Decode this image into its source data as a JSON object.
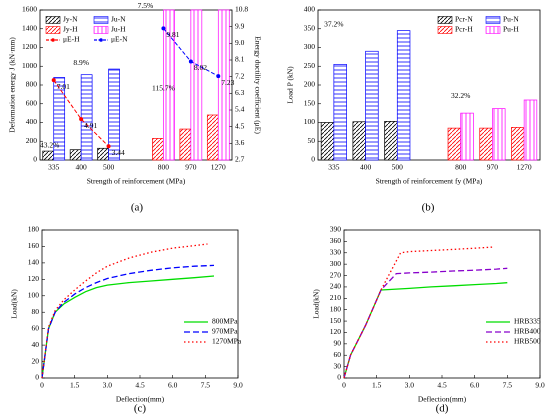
{
  "chart_data": [
    {
      "type": "bar",
      "caption": "(a)",
      "xlabel": "Strength of reinforcement (MPa)",
      "ylabel": "Deformation energy J (kN·mm)",
      "y2label": "Energy ductility coefficient (μE)",
      "categories": [
        "335",
        "400",
        "500",
        null,
        "800",
        "970",
        "1270"
      ],
      "ylim": [
        0,
        1600
      ],
      "yticks": [
        0,
        200,
        400,
        600,
        800,
        1000,
        1200,
        1400,
        1600
      ],
      "y2lim": [
        2.7,
        10.8
      ],
      "y2ticks": [
        2.7,
        3.6,
        4.5,
        5.4,
        6.3,
        7.2,
        8.1,
        {
          "value": 9,
          "label": "9.0"
        },
        9.9,
        10.8
      ],
      "legend": "upper left",
      "series": [
        {
          "name": "Jy-N",
          "color": "#000000",
          "hatch": "diagonal",
          "values": [
            95,
            110,
            125,
            null,
            null,
            null,
            null
          ]
        },
        {
          "name": "Ju-N",
          "color": "#0000ff",
          "hatch": "horizontal",
          "values": [
            880,
            910,
            970,
            null,
            null,
            null,
            null
          ]
        },
        {
          "name": "Jy-H",
          "color": "#ff0000",
          "hatch": "diagonal",
          "values": [
            null,
            null,
            null,
            null,
            230,
            330,
            480
          ]
        },
        {
          "name": "Ju-H",
          "color": "#ff00ff",
          "hatch": "vertical",
          "values": [
            null,
            null,
            null,
            null,
            1600,
            1600,
            1600
          ]
        },
        {
          "name": "μE-H",
          "color": "#ff0000",
          "axis": "y2",
          "kind": "line",
          "values": [
            7.01,
            4.91,
            3.44,
            null,
            null,
            null,
            null
          ],
          "value_labels": [
            "7.01",
            "4.91",
            "3.44",
            null,
            null,
            null,
            null
          ]
        },
        {
          "name": "μE-N",
          "color": "#0000ff",
          "axis": "y2",
          "kind": "line",
          "values": [
            null,
            null,
            null,
            null,
            9.81,
            8.02,
            7.23
          ],
          "value_labels": [
            null,
            null,
            null,
            null,
            "9.81",
            "8.02",
            "7.23"
          ]
        }
      ],
      "annotations": [
        "43.2%",
        "8.9%",
        "115.7%",
        "7.5%"
      ]
    },
    {
      "type": "bar",
      "caption": "(b)",
      "xlabel": "Strength of reinforcement fy (MPa)",
      "ylabel": "Load P (kN)",
      "categories": [
        "335",
        "400",
        "500",
        null,
        "800",
        "970",
        "1270"
      ],
      "ylim": [
        0,
        400
      ],
      "yticks": [
        0,
        50,
        100,
        150,
        200,
        250,
        300,
        350,
        400
      ],
      "legend": "upper right",
      "series": [
        {
          "name": "Pcr-N",
          "color": "#000000",
          "hatch": "diagonal",
          "values": [
            100,
            102,
            103,
            null,
            null,
            null,
            null
          ]
        },
        {
          "name": "Pu-N",
          "color": "#0000ff",
          "hatch": "horizontal",
          "values": [
            255,
            290,
            345,
            null,
            null,
            null,
            null
          ]
        },
        {
          "name": "Pcr-H",
          "color": "#ff0000",
          "hatch": "diagonal",
          "values": [
            null,
            null,
            null,
            null,
            85,
            85,
            87
          ]
        },
        {
          "name": "Pu-H",
          "color": "#ff00ff",
          "hatch": "vertical",
          "values": [
            null,
            null,
            null,
            null,
            125,
            137,
            160
          ]
        }
      ],
      "annotations": [
        "37.2%",
        "32.2%"
      ]
    },
    {
      "type": "line",
      "caption": "(c)",
      "xlabel": "Deflection(mm)",
      "ylabel": "Load(kN)",
      "xlim": [
        0,
        9
      ],
      "xticks": [
        0,
        1.5,
        {
          "value": 3,
          "label": "3.0"
        },
        4.5,
        {
          "value": 6,
          "label": "6.0"
        },
        7.5,
        {
          "value": 9,
          "label": "9.0"
        }
      ],
      "ylim": [
        0,
        180
      ],
      "yticks": [
        0,
        20,
        40,
        60,
        80,
        100,
        120,
        140,
        160,
        180
      ],
      "legend": "lower right",
      "series": [
        {
          "name": "800MPa",
          "color": "#00dd00",
          "style": "solid",
          "x": [
            0,
            0.3,
            0.6,
            1.0,
            1.5,
            2,
            2.5,
            3,
            4,
            5,
            6,
            7,
            7.9
          ],
          "values": [
            0,
            60,
            80,
            90,
            98,
            105,
            110,
            113,
            116,
            118,
            120,
            122,
            124
          ]
        },
        {
          "name": "970MPa",
          "color": "#0000ff",
          "style": "dashed",
          "x": [
            0,
            0.3,
            0.6,
            1.0,
            1.5,
            2,
            2.5,
            3,
            4,
            5,
            6,
            7,
            7.9
          ],
          "values": [
            0,
            60,
            80,
            92,
            102,
            110,
            116,
            121,
            127,
            131,
            134,
            136,
            137
          ]
        },
        {
          "name": "1270MPa",
          "color": "#ff0000",
          "style": "dotted",
          "x": [
            0,
            0.3,
            0.6,
            1.0,
            1.5,
            2,
            2.5,
            3,
            4,
            5,
            6,
            7,
            7.6
          ],
          "values": [
            0,
            62,
            82,
            95,
            107,
            118,
            128,
            136,
            146,
            153,
            158,
            161,
            163
          ]
        }
      ]
    },
    {
      "type": "line",
      "caption": "(d)",
      "xlabel": "Deflection(mm)",
      "ylabel": "Load(kN)",
      "xlim": [
        0,
        9
      ],
      "xticks": [
        0,
        1.5,
        {
          "value": 3,
          "label": "3.0"
        },
        4.5,
        {
          "value": 6,
          "label": "6.0"
        },
        7.5,
        {
          "value": 9,
          "label": "9.0"
        }
      ],
      "ylim": [
        0,
        390
      ],
      "yticks": [
        0,
        30,
        60,
        90,
        120,
        150,
        180,
        210,
        240,
        270,
        300,
        330,
        360,
        390
      ],
      "legend": "lower right",
      "series": [
        {
          "name": "HRB335",
          "color": "#00dd00",
          "style": "solid",
          "x": [
            0,
            0.3,
            1.0,
            1.7,
            2,
            3,
            4,
            5,
            6,
            7,
            7.5
          ],
          "values": [
            0,
            60,
            140,
            232,
            233,
            236,
            240,
            243,
            246,
            249,
            251
          ]
        },
        {
          "name": "HRB400",
          "color": "#8800cc",
          "style": "dashed",
          "x": [
            0,
            0.3,
            1.0,
            1.7,
            2.4,
            3,
            4,
            5,
            6,
            7,
            7.5
          ],
          "values": [
            0,
            60,
            140,
            232,
            275,
            277,
            279,
            282,
            284,
            287,
            289
          ]
        },
        {
          "name": "HRB500",
          "color": "#ff0000",
          "style": "dotted",
          "x": [
            0,
            0.3,
            1.0,
            1.7,
            2.6,
            3,
            4,
            5,
            6,
            6.8
          ],
          "values": [
            0,
            60,
            140,
            232,
            330,
            333,
            336,
            339,
            342,
            345
          ]
        }
      ]
    }
  ]
}
